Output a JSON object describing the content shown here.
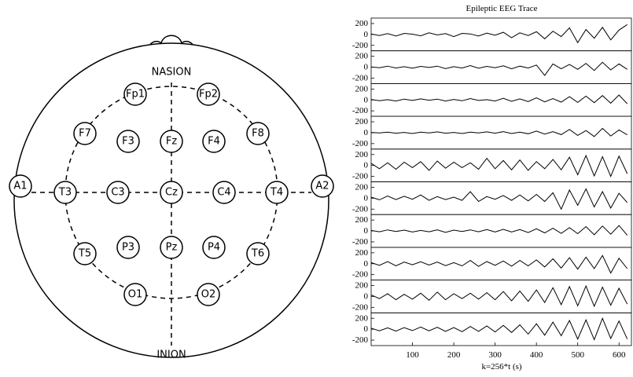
{
  "diagram": {
    "top_label": "NASION",
    "bottom_label": "INION",
    "electrodes": [
      "A1",
      "A2",
      "Fp1",
      "Fp2",
      "F7",
      "F3",
      "Fz",
      "F4",
      "F8",
      "T3",
      "C3",
      "Cz",
      "C4",
      "T4",
      "T5",
      "P3",
      "Pz",
      "P4",
      "T6",
      "O1",
      "O2"
    ]
  },
  "chart_data": {
    "type": "line",
    "title": "Epileptic EEG Trace",
    "xlabel": "k=256*t (s)",
    "x": [
      0,
      20,
      40,
      60,
      80,
      100,
      120,
      140,
      160,
      180,
      200,
      220,
      240,
      260,
      280,
      300,
      320,
      340,
      360,
      380,
      400,
      420,
      440,
      460,
      480,
      500,
      520,
      540,
      560,
      580,
      600,
      620
    ],
    "xlim": [
      0,
      630
    ],
    "xticks": [
      100,
      200,
      300,
      400,
      500,
      600
    ],
    "ylim": [
      -300,
      300
    ],
    "yticks": [
      200,
      0,
      -200
    ],
    "series": [
      {
        "color": "#000000",
        "values": [
          10,
          -20,
          15,
          -30,
          20,
          5,
          -25,
          30,
          -10,
          15,
          -40,
          20,
          10,
          -30,
          25,
          -15,
          40,
          -60,
          30,
          -20,
          50,
          -80,
          60,
          -40,
          120,
          -150,
          90,
          -70,
          130,
          -100,
          80,
          180
        ]
      },
      {
        "color": "#000000",
        "values": [
          5,
          -10,
          20,
          -15,
          10,
          -20,
          15,
          -5,
          20,
          -25,
          10,
          -15,
          30,
          -20,
          15,
          -10,
          25,
          -30,
          20,
          -15,
          40,
          -150,
          60,
          -30,
          50,
          -40,
          70,
          -60,
          90,
          -50,
          60,
          -40
        ]
      },
      {
        "color": "#000000",
        "values": [
          10,
          -15,
          5,
          -20,
          15,
          -10,
          20,
          -5,
          15,
          -20,
          10,
          -15,
          25,
          -10,
          5,
          -20,
          30,
          -25,
          20,
          -30,
          40,
          -35,
          25,
          -40,
          60,
          -45,
          70,
          -50,
          80,
          -60,
          90,
          -70
        ]
      },
      {
        "color": "#000000",
        "values": [
          5,
          -5,
          10,
          -10,
          5,
          -15,
          10,
          -5,
          15,
          -10,
          5,
          -15,
          10,
          -5,
          15,
          -10,
          20,
          -15,
          10,
          -20,
          30,
          -25,
          20,
          -35,
          60,
          -50,
          40,
          -70,
          80,
          -60,
          50,
          -40
        ]
      },
      {
        "color": "#000000",
        "values": [
          40,
          -60,
          50,
          -70,
          60,
          -40,
          70,
          -90,
          80,
          -50,
          60,
          -40,
          50,
          -70,
          130,
          -60,
          90,
          -80,
          100,
          -90,
          70,
          -60,
          110,
          -80,
          150,
          -170,
          180,
          -190,
          160,
          -200,
          170,
          -150
        ]
      },
      {
        "color": "#000000",
        "values": [
          20,
          -30,
          40,
          -25,
          35,
          -20,
          60,
          -40,
          30,
          -25,
          20,
          -40,
          120,
          -60,
          30,
          -20,
          50,
          -40,
          60,
          -50,
          70,
          -60,
          100,
          -200,
          150,
          -130,
          170,
          -160,
          120,
          -180,
          90,
          -80
        ]
      },
      {
        "color": "#000000",
        "values": [
          10,
          -15,
          20,
          -10,
          15,
          -20,
          10,
          -15,
          20,
          -25,
          15,
          -10,
          20,
          -15,
          25,
          -20,
          30,
          -20,
          25,
          -30,
          40,
          -35,
          50,
          -45,
          60,
          -50,
          80,
          -70,
          90,
          -60,
          100,
          -80
        ]
      },
      {
        "color": "#000000",
        "values": [
          20,
          -30,
          40,
          -40,
          30,
          -20,
          35,
          -25,
          30,
          -35,
          20,
          -40,
          60,
          -50,
          40,
          -30,
          50,
          -45,
          60,
          -40,
          70,
          -60,
          90,
          -80,
          110,
          -100,
          120,
          -90,
          150,
          -170,
          100,
          -90
        ]
      },
      {
        "color": "#000000",
        "values": [
          30,
          -40,
          50,
          -60,
          40,
          -50,
          60,
          -70,
          80,
          -60,
          50,
          -40,
          60,
          -50,
          70,
          -60,
          90,
          -80,
          100,
          -90,
          120,
          -110,
          160,
          -150,
          180,
          -170,
          190,
          -180,
          170,
          -160,
          150,
          -140
        ]
      },
      {
        "color": "#000000",
        "values": [
          20,
          -30,
          25,
          -35,
          30,
          -25,
          40,
          -30,
          35,
          -40,
          30,
          -45,
          50,
          -40,
          60,
          -50,
          70,
          -60,
          80,
          -90,
          100,
          -110,
          130,
          -120,
          160,
          -180,
          170,
          -190,
          200,
          -170,
          150,
          -180
        ]
      }
    ]
  }
}
